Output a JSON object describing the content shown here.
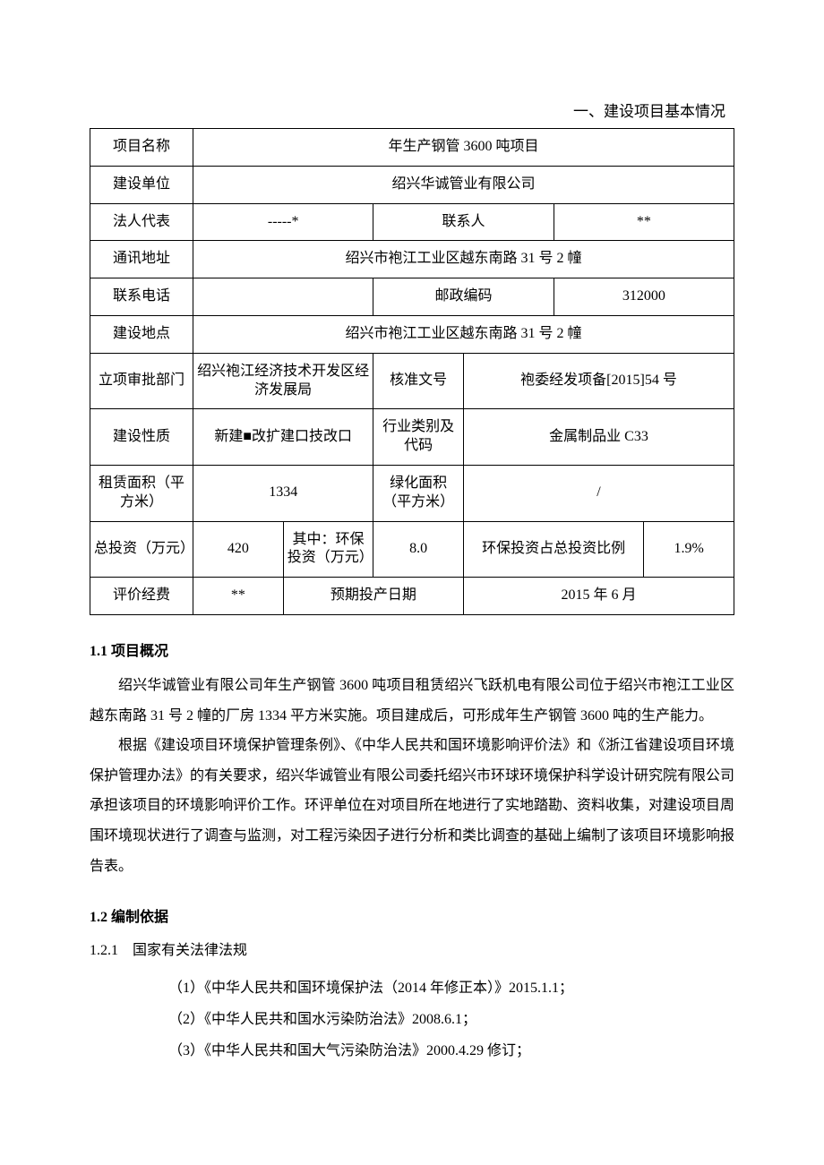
{
  "title": "一、建设项目基本情况",
  "table": {
    "rows": [
      {
        "cells": [
          {
            "t": "项目名称",
            "w": "16%"
          },
          {
            "t": "年生产钢管 3600 吨项目",
            "span": 6
          }
        ]
      },
      {
        "cells": [
          {
            "t": "建设单位"
          },
          {
            "t": "绍兴华诚管业有限公司",
            "span": 6
          }
        ]
      },
      {
        "cells": [
          {
            "t": "法人代表"
          },
          {
            "t": "-----*",
            "span": 2
          },
          {
            "t": "联系人",
            "span": 2
          },
          {
            "t": "**",
            "span": 2
          }
        ]
      },
      {
        "cells": [
          {
            "t": "通讯地址"
          },
          {
            "t": "绍兴市袍江工业区越东南路 31 号 2 幢",
            "span": 6
          }
        ]
      },
      {
        "cells": [
          {
            "t": "联系电话"
          },
          {
            "t": "",
            "span": 2
          },
          {
            "t": "邮政编码",
            "span": 2
          },
          {
            "t": "312000",
            "span": 2
          }
        ]
      },
      {
        "cells": [
          {
            "t": "建设地点"
          },
          {
            "t": "绍兴市袍江工业区越东南路 31 号 2 幢",
            "span": 6
          }
        ]
      },
      {
        "cells": [
          {
            "t": "立项审批部门"
          },
          {
            "t": "绍兴袍江经济技术开发区经济发展局",
            "span": 2
          },
          {
            "t": "核准文号",
            "span": 1
          },
          {
            "t": "袍委经发项备[2015]54 号",
            "span": 3
          }
        ]
      },
      {
        "cells": [
          {
            "t": "建设性质"
          },
          {
            "t": "新建■改扩建口技改口",
            "span": 2
          },
          {
            "t": "行业类别及代码",
            "span": 1
          },
          {
            "t": "金属制品业 C33",
            "span": 3
          }
        ]
      },
      {
        "cells": [
          {
            "t": "租赁面积（平方米）"
          },
          {
            "t": "1334",
            "span": 2
          },
          {
            "t": "绿化面积（平方米）",
            "span": 1
          },
          {
            "t": "/",
            "span": 3
          }
        ]
      },
      {
        "cells": [
          {
            "t": "总投资（万元）"
          },
          {
            "t": "420",
            "span": 1
          },
          {
            "t": "其中：环保投资（万元）",
            "span": 1
          },
          {
            "t": "8.0",
            "span": 1
          },
          {
            "t": "环保投资占总投资比例",
            "span": 2
          },
          {
            "t": "1.9%",
            "span": 1
          }
        ]
      },
      {
        "cells": [
          {
            "t": "评价经费"
          },
          {
            "t": "**",
            "span": 1
          },
          {
            "t": "预期投产日期",
            "span": 2
          },
          {
            "t": "2015 年 6 月",
            "span": 3
          }
        ]
      }
    ],
    "col_widths": [
      "16%",
      "14%",
      "14%",
      "14%",
      "14%",
      "14%",
      "14%"
    ]
  },
  "sections": {
    "s1": {
      "heading": "1.1 项目概况",
      "paragraphs": [
        "绍兴华诚管业有限公司年生产钢管 3600 吨项目租赁绍兴飞跃机电有限公司位于绍兴市袍江工业区越东南路 31 号 2 幢的厂房 1334 平方米实施。项目建成后，可形成年生产钢管 3600 吨的生产能力。",
        "根据《建设项目环境保护管理条例》、《中华人民共和国环境影响评价法》和《浙江省建设项目环境保护管理办法》的有关要求，绍兴华诚管业有限公司委托绍兴市环球环境保护科学设计研究院有限公司承担该项目的环境影响评价工作。环评单位在对项目所在地进行了实地踏勘、资料收集，对建设项目周围环境现状进行了调查与监测，对工程污染因子进行分析和类比调查的基础上编制了该项目环境影响报告表。"
      ]
    },
    "s2": {
      "heading": "1.2 编制依据",
      "sub": "1.2.1　国家有关法律法规",
      "items": [
        "（1）《中华人民共和国环境保护法（2014 年修正本）》2015.1.1；",
        "（2）《中华人民共和国水污染防治法》2008.6.1；",
        "（3）《中华人民共和国大气污染防治法》2000.4.29 修订；"
      ]
    }
  }
}
